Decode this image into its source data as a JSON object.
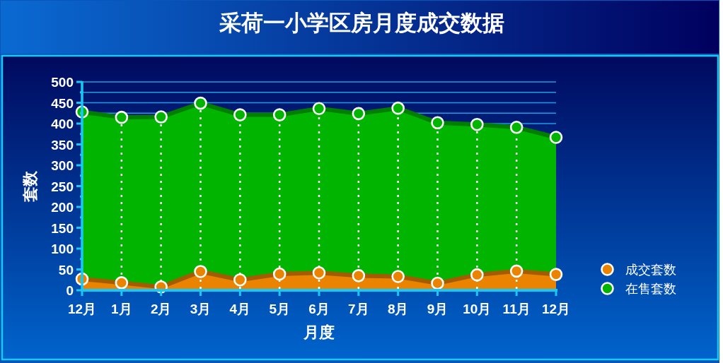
{
  "chart_data": {
    "type": "area",
    "title": "采荷一小学区房月度成交数据",
    "xlabel": "月度",
    "ylabel": "套数",
    "categories": [
      "12月",
      "1月",
      "2月",
      "3月",
      "4月",
      "5月",
      "6月",
      "7月",
      "8月",
      "9月",
      "10月",
      "11月",
      "12月"
    ],
    "series": [
      {
        "name": "成交套数",
        "color": "#ea8400",
        "values": [
          27,
          18,
          8,
          45,
          25,
          39,
          42,
          35,
          33,
          17,
          37,
          46,
          38
        ]
      },
      {
        "name": "在售套数",
        "color": "#00b400",
        "values": [
          428,
          415,
          416,
          449,
          421,
          421,
          436,
          424,
          437,
          402,
          398,
          391,
          367
        ]
      }
    ],
    "ylim": [
      0,
      500
    ],
    "yticks": [
      0,
      {
        "value": 25,
        "label": null
      },
      50,
      {
        "value": 75,
        "label": null
      },
      100,
      {
        "value": 125,
        "label": null
      },
      150,
      {
        "value": 175,
        "label": null
      },
      200,
      {
        "value": 225,
        "label": null
      },
      250,
      {
        "value": 275,
        "label": null
      },
      300,
      {
        "value": 325,
        "label": null
      },
      350,
      {
        "value": 375,
        "label": null
      },
      400,
      {
        "value": 425,
        "label": null
      },
      450,
      {
        "value": 475,
        "label": null
      },
      500
    ],
    "grid": true,
    "legend": "right",
    "marker": "circle",
    "line_style": "solid"
  }
}
